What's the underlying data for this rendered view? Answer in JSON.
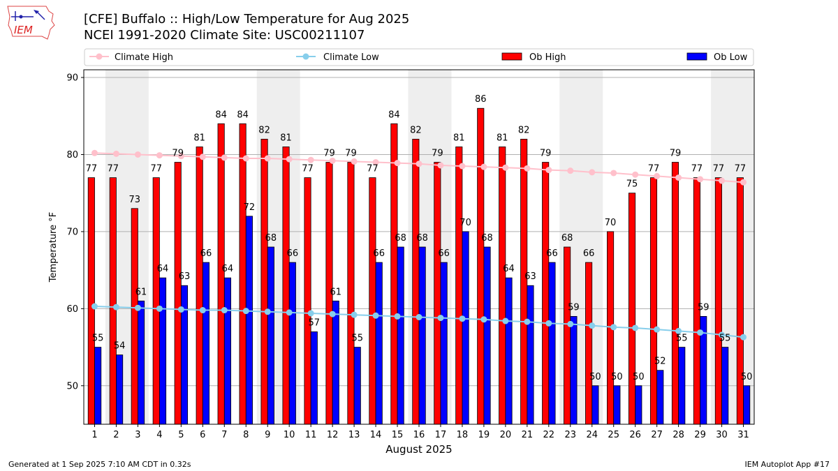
{
  "header": {
    "title_line1": "[CFE] Buffalo :: High/Low Temperature for Aug 2025",
    "title_line2": "NCEI 1991-2020 Climate Site: USC00211107",
    "logo_text": "IEM"
  },
  "footer": {
    "generated": "Generated at 1 Sep 2025 7:10 AM CDT in 0.32s",
    "app": "IEM Autoplot App #17"
  },
  "colors": {
    "ob_high": "#ff0000",
    "ob_low": "#0000ff",
    "climate_high": "#ffc0cb",
    "climate_low": "#87ceeb",
    "weekend_band": "#eeeeee",
    "grid": "#b0b0b0"
  },
  "chart_data": {
    "type": "bar",
    "title": "[CFE] Buffalo :: High/Low Temperature for Aug 2025",
    "xlabel": "August 2025",
    "ylabel": "Temperature °F",
    "ylim": [
      45,
      91
    ],
    "yticks": [
      50,
      60,
      70,
      80,
      90
    ],
    "grid": true,
    "legend_placement": "top",
    "categories": [
      "1",
      "2",
      "3",
      "4",
      "5",
      "6",
      "7",
      "8",
      "9",
      "10",
      "11",
      "12",
      "13",
      "14",
      "15",
      "16",
      "17",
      "18",
      "19",
      "20",
      "21",
      "22",
      "23",
      "24",
      "25",
      "26",
      "27",
      "28",
      "29",
      "30",
      "31"
    ],
    "weekend_days": [
      [
        2,
        3
      ],
      [
        9,
        10
      ],
      [
        16,
        17
      ],
      [
        23,
        24
      ],
      [
        30,
        31
      ]
    ],
    "series": [
      {
        "name": "Climate High",
        "kind": "line",
        "values": [
          80.2,
          80.1,
          80.0,
          79.9,
          79.8,
          79.7,
          79.6,
          79.5,
          79.5,
          79.4,
          79.3,
          79.2,
          79.1,
          79.0,
          78.9,
          78.8,
          78.6,
          78.5,
          78.4,
          78.3,
          78.2,
          78.0,
          77.9,
          77.7,
          77.6,
          77.4,
          77.2,
          77.0,
          76.8,
          76.6,
          76.4
        ]
      },
      {
        "name": "Climate Low",
        "kind": "line",
        "values": [
          60.3,
          60.2,
          60.1,
          60.0,
          59.9,
          59.8,
          59.8,
          59.7,
          59.6,
          59.5,
          59.4,
          59.3,
          59.2,
          59.1,
          59.0,
          58.9,
          58.8,
          58.7,
          58.6,
          58.4,
          58.3,
          58.1,
          58.0,
          57.8,
          57.6,
          57.5,
          57.3,
          57.1,
          56.9,
          56.6,
          56.3
        ]
      },
      {
        "name": "Ob High",
        "kind": "bar",
        "values": [
          77,
          77,
          73,
          77,
          79,
          81,
          84,
          84,
          82,
          81,
          77,
          79,
          79,
          77,
          84,
          82,
          79,
          81,
          86,
          81,
          82,
          79,
          68,
          66,
          70,
          75,
          77,
          79,
          77,
          77,
          77
        ]
      },
      {
        "name": "Ob Low",
        "kind": "bar",
        "values": [
          55,
          54,
          61,
          64,
          63,
          66,
          64,
          72,
          68,
          66,
          57,
          61,
          55,
          66,
          68,
          68,
          66,
          70,
          68,
          64,
          63,
          66,
          59,
          50,
          50,
          50,
          52,
          55,
          59,
          55,
          50
        ]
      }
    ]
  }
}
